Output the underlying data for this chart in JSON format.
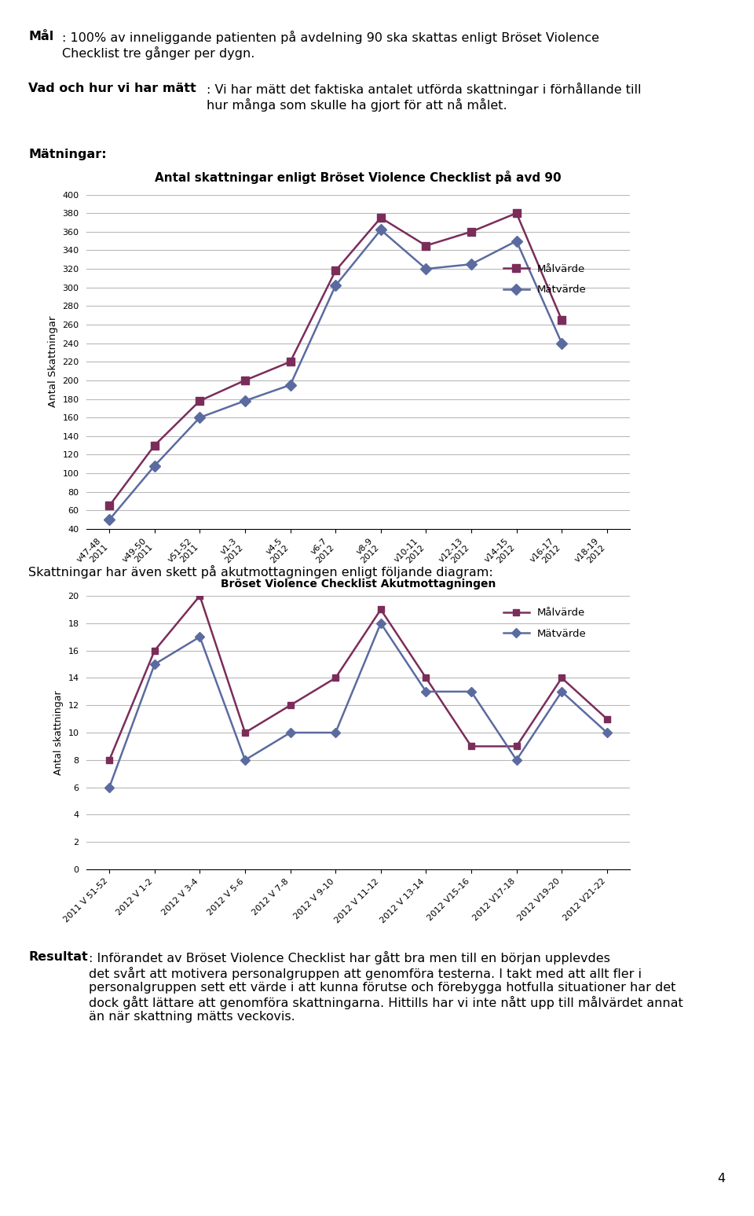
{
  "chart1_title": "Antal skattningar enligt Bröset Violence Checklist på avd 90",
  "chart1_ylabel": "Antal Skattningar",
  "chart1_ylim": [
    40,
    400
  ],
  "chart1_yticks": [
    40,
    60,
    80,
    100,
    120,
    140,
    160,
    180,
    200,
    220,
    240,
    260,
    280,
    300,
    320,
    340,
    360,
    380,
    400
  ],
  "chart1_xlabel_values": [
    "v47-48\n2011",
    "v49-50\n2011",
    "v51-52\n2011",
    "v1-3\n2012",
    "v4-5\n2012",
    "v6-7\n2012",
    "v8-9\n2012",
    "v10-11\n2012",
    "v12-13\n2012",
    "v14-15\n2012",
    "v16-17\n2012",
    "v18-19\n2012"
  ],
  "chart1_malvarde": [
    65,
    130,
    178,
    200,
    220,
    318,
    375,
    345,
    360,
    380,
    265,
    null
  ],
  "chart1_matvarde": [
    50,
    108,
    160,
    178,
    195,
    302,
    362,
    320,
    325,
    350,
    240,
    null
  ],
  "chart1_malvarde_color": "#7B2D5A",
  "chart1_matvarde_color": "#5B6BA0",
  "chart2_title": "Bröset Violence Checklist Akutmottagningen",
  "chart2_ylabel": "Antal skattningar",
  "chart2_ylim": [
    0,
    20
  ],
  "chart2_yticks": [
    0,
    2,
    4,
    6,
    8,
    10,
    12,
    14,
    16,
    18,
    20
  ],
  "chart2_xlabel_values": [
    "2011 V 51-52",
    "2012 V 1-2",
    "2012 V 3-4",
    "2012 V 5-6",
    "2012 V 7-8",
    "2012 V 9-10",
    "2012 V 11-12",
    "2012 V 13-14",
    "2012 V15-16",
    "2012 V17-18",
    "2012 V19-20",
    "2012 V21-22"
  ],
  "chart2_malvarde": [
    8,
    16,
    20,
    10,
    12,
    14,
    19,
    14,
    9,
    9,
    14,
    11
  ],
  "chart2_matvarde": [
    6,
    15,
    17,
    8,
    10,
    10,
    18,
    13,
    13,
    8,
    13,
    10
  ],
  "chart2_malvarde_color": "#7B2D5A",
  "chart2_matvarde_color": "#5B6BA0",
  "legend_malvarde": "Målvärde",
  "legend_matvarde": "Mätvärde",
  "background_color": "#FFFFFF",
  "grid_color": "#B8B8B8",
  "font_color": "#000000"
}
